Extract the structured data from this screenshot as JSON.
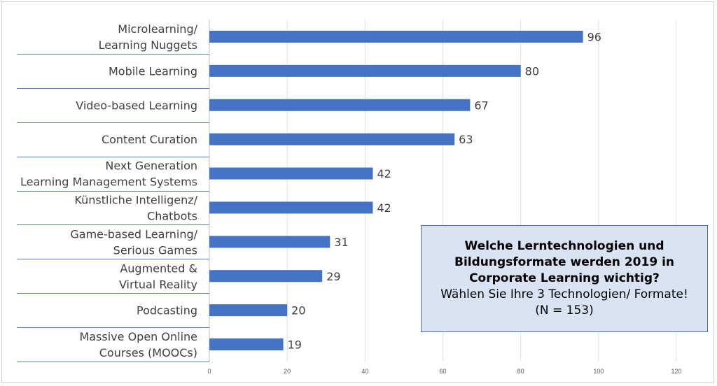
{
  "chart_data": {
    "type": "bar",
    "orientation": "horizontal",
    "categories": [
      [
        "Microlearning/",
        "Learning Nuggets"
      ],
      [
        "Mobile Learning"
      ],
      [
        "Video-based Learning"
      ],
      [
        "Content Curation"
      ],
      [
        "Next Generation",
        "Learning Management Systems"
      ],
      [
        "Künstliche Intelligenz/",
        "Chatbots"
      ],
      [
        "Game-based Learning/",
        "Serious Games"
      ],
      [
        "Augmented &",
        "Virtual Reality"
      ],
      [
        "Podcasting"
      ],
      [
        "Massive Open Online",
        "Courses (MOOCs)"
      ]
    ],
    "values": [
      96,
      80,
      67,
      63,
      42,
      42,
      31,
      29,
      20,
      19
    ],
    "value_labels": [
      "96",
      "80",
      "67",
      "63",
      "42",
      "42",
      "31",
      "29",
      "20",
      "19"
    ],
    "xlim": [
      0,
      120
    ],
    "xticks": [
      "0",
      "20",
      "40",
      "60",
      "80",
      "100",
      "120"
    ],
    "grid": "vertical",
    "bar_color": "#4472c4",
    "title": "",
    "xlabel": "",
    "ylabel": ""
  },
  "annotation": {
    "bold_lines": [
      "Welche Lerntechnologien und",
      "Bildungsformate werden 2019 in",
      "Corporate Learning wichtig?"
    ],
    "normal_lines": [
      "Wählen Sie Ihre 3 Technologien/ Formate!",
      "(N = 153)"
    ],
    "background": "#dae3f3",
    "border_color": "#4a6fb0"
  }
}
